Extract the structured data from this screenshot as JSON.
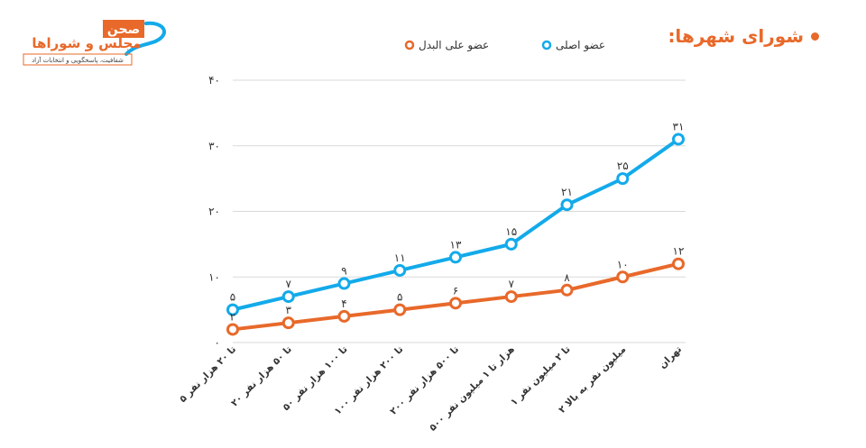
{
  "page": {
    "title": "شورای شهرها:",
    "logo": {
      "brand": "صحن",
      "name": "مجلس و شوراها",
      "tagline": "شفافیت، پاسخگویی و انتخابات آزاد"
    }
  },
  "colors": {
    "primary": "#13aaea",
    "alternate": "#e8692a",
    "title": "#e8692a",
    "grid": "#d9d9d9"
  },
  "chart_data": {
    "type": "line",
    "title": "",
    "xlabel": "",
    "ylabel": "",
    "ylim": [
      0,
      40
    ],
    "yticks": [
      "۰",
      "۱۰",
      "۲۰",
      "۳۰",
      "۴۰"
    ],
    "ytick_values": [
      0,
      10,
      20,
      30,
      40
    ],
    "grid": true,
    "legend_position": "top-center",
    "categories": [
      "۵ تا ۲۰ هزار نفر",
      "۲۰ تا ۵۰ هزار نفر",
      "۵۰ تا ۱۰۰ هزار نفر",
      "۱۰۰ تا ۲۰۰ هزار نفر",
      "۲۰۰ تا ۵۰۰ هزار نفر",
      "۵۰۰ هزار تا ۱ میلیون نفر",
      "۱ تا ۲ میلیون نفر",
      "۲ میلیون نفر به بالا",
      "تهران"
    ],
    "series": [
      {
        "name": "عضو اصلی",
        "color": "#13aaea",
        "values": [
          5,
          7,
          9,
          11,
          13,
          15,
          21,
          25,
          31
        ],
        "labels": [
          "۵",
          "۷",
          "۹",
          "۱۱",
          "۱۳",
          "۱۵",
          "۲۱",
          "۲۵",
          "۳۱"
        ]
      },
      {
        "name": "عضو علی البدل",
        "color": "#e8692a",
        "values": [
          2,
          3,
          4,
          5,
          6,
          7,
          8,
          10,
          12
        ],
        "labels": [
          "۲",
          "۳",
          "۴",
          "۵",
          "۶",
          "۷",
          "۸",
          "۱۰",
          "۱۲"
        ]
      }
    ]
  }
}
